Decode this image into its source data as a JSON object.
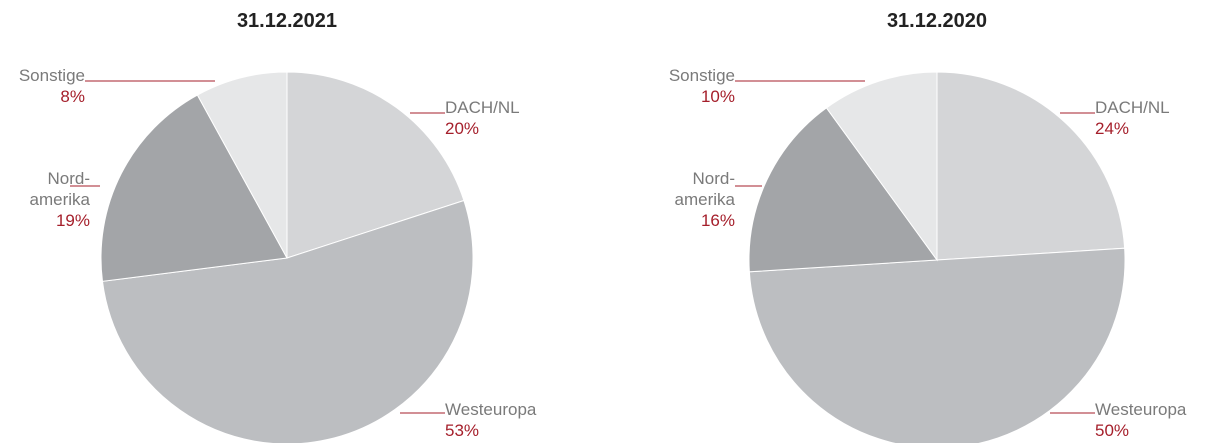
{
  "chart_data": [
    {
      "type": "pie",
      "title": "31.12.2021",
      "categories": [
        "DACH/NL",
        "Westeuropa",
        "Nord-\namerika",
        "Sonstige"
      ],
      "values": [
        20,
        53,
        19,
        8
      ],
      "value_labels": [
        "20%",
        "53%",
        "19%",
        "8%"
      ],
      "colors": [
        "#d4d5d7",
        "#bcbec1",
        "#a3a5a8",
        "#e6e7e8"
      ]
    },
    {
      "type": "pie",
      "title": "31.12.2020",
      "categories": [
        "DACH/NL",
        "Westeuropa",
        "Nord-\namerika",
        "Sonstige"
      ],
      "values": [
        24,
        50,
        16,
        10
      ],
      "value_labels": [
        "24%",
        "50%",
        "16%",
        "10%"
      ],
      "colors": [
        "#d4d5d7",
        "#bcbec1",
        "#a3a5a8",
        "#e6e7e8"
      ]
    }
  ]
}
